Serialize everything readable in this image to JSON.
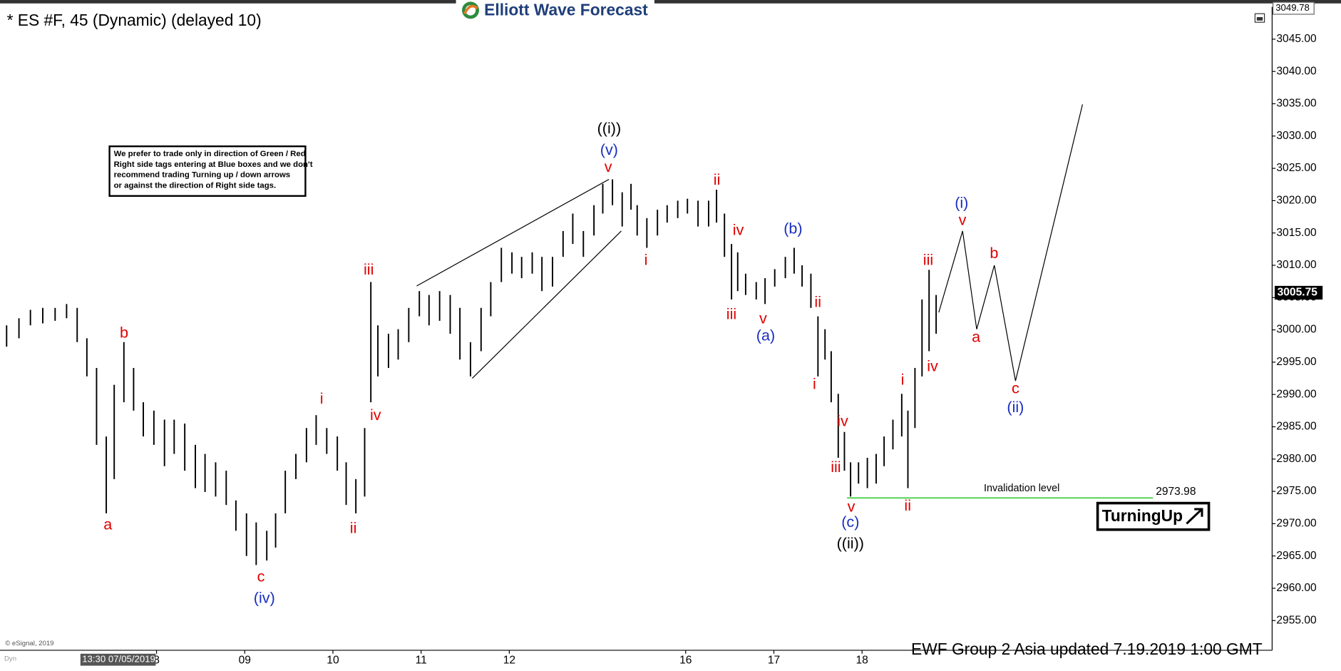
{
  "chart_data": {
    "type": "ohlc",
    "title": "* ES #F, 45 (Dynamic) (delayed 10)",
    "logo": "Elliott Wave Forecast",
    "bar_color": "#000000",
    "xlim": [
      -1.775,
      12.65
    ],
    "ylim": [
      2950.4,
      3050.0
    ],
    "xticks": [
      {
        "value": 0,
        "label": "8"
      },
      {
        "value": 1,
        "label": "09"
      },
      {
        "value": 2,
        "label": "10"
      },
      {
        "value": 3,
        "label": "11"
      },
      {
        "value": 4,
        "label": "12"
      },
      {
        "value": 6,
        "label": "16"
      },
      {
        "value": 7,
        "label": "17"
      },
      {
        "value": 8,
        "label": "18"
      }
    ],
    "yticks": [
      {
        "value": 3045,
        "label": "3045.00"
      },
      {
        "value": 3040,
        "label": "3040.00"
      },
      {
        "value": 3035,
        "label": "3035.00"
      },
      {
        "value": 3030,
        "label": "3030.00"
      },
      {
        "value": 3025,
        "label": "3025.00"
      },
      {
        "value": 3020,
        "label": "3020.00"
      },
      {
        "value": 3015,
        "label": "3015.00"
      },
      {
        "value": 3010,
        "label": "3010.00"
      },
      {
        "value": 3005,
        "label": "3005.00"
      },
      {
        "value": 3000,
        "label": "3000.00"
      },
      {
        "value": 2995,
        "label": "2995.00"
      },
      {
        "value": 2990,
        "label": "2990.00"
      },
      {
        "value": 2985,
        "label": "2985.00"
      },
      {
        "value": 2980,
        "label": "2980.00"
      },
      {
        "value": 2975,
        "label": "2975.00"
      },
      {
        "value": 2970,
        "label": "2970.00"
      },
      {
        "value": 2965,
        "label": "2965.00"
      },
      {
        "value": 2960,
        "label": "2960.00"
      },
      {
        "value": 2955,
        "label": "2955.00"
      }
    ],
    "top_price": 3049.78,
    "last_price": 3005.75,
    "x": [
      -1.7,
      -1.56,
      -1.43,
      -1.29,
      -1.15,
      -1.02,
      -0.9,
      -0.79,
      -0.68,
      -0.57,
      -0.48,
      -0.37,
      -0.26,
      -0.15,
      -0.03,
      0.09,
      0.2,
      0.32,
      0.44,
      0.55,
      0.67,
      0.79,
      0.9,
      1.02,
      1.13,
      1.25,
      1.35,
      1.46,
      1.58,
      1.7,
      1.81,
      1.93,
      2.05,
      2.15,
      2.26,
      2.36,
      2.43,
      2.51,
      2.63,
      2.74,
      2.86,
      2.98,
      3.09,
      3.21,
      3.33,
      3.44,
      3.56,
      3.68,
      3.79,
      3.91,
      4.03,
      4.14,
      4.26,
      4.37,
      4.49,
      4.61,
      4.72,
      4.84,
      4.96,
      5.06,
      5.17,
      5.28,
      5.38,
      5.45,
      5.56,
      5.68,
      5.79,
      5.91,
      6.02,
      6.14,
      6.26,
      6.35,
      6.44,
      6.52,
      6.59,
      6.68,
      6.8,
      6.9,
      7.01,
      7.13,
      7.23,
      7.32,
      7.42,
      7.5,
      7.58,
      7.65,
      7.73,
      7.8,
      7.87,
      7.96,
      8.06,
      8.16,
      8.25,
      8.35,
      8.45,
      8.52,
      8.6,
      8.68,
      8.76,
      8.84
    ],
    "high": [
      3000.7,
      3001.8,
      3003.1,
      3003.4,
      3003.4,
      3004.0,
      3003.4,
      2998.7,
      2994.1,
      2983.5,
      2991.5,
      2998.1,
      2994.1,
      2988.8,
      2987.5,
      2986.1,
      2986.1,
      2985.5,
      2982.2,
      2980.8,
      2979.5,
      2978.2,
      2973.6,
      2971.6,
      2970.2,
      2968.9,
      2971.6,
      2978.2,
      2980.8,
      2984.8,
      2986.8,
      2984.8,
      2983.5,
      2979.5,
      2976.9,
      2984.8,
      3007.4,
      3000.7,
      2999.4,
      3000.1,
      3003.4,
      3006.0,
      3005.4,
      3006.0,
      3005.4,
      3003.4,
      2998.1,
      3003.4,
      3007.4,
      3012.7,
      3012.0,
      3011.3,
      3012.0,
      3011.3,
      3011.3,
      3015.3,
      3018.0,
      3015.3,
      3019.3,
      3022.6,
      3023.3,
      3021.3,
      3022.6,
      3019.3,
      3017.3,
      3018.6,
      3019.3,
      3020.0,
      3020.3,
      3020.0,
      3020.0,
      3021.7,
      3018.0,
      3013.3,
      3012.0,
      3008.7,
      3007.4,
      3008.0,
      3009.4,
      3011.3,
      3012.7,
      3010.0,
      3008.7,
      3002.1,
      3000.1,
      2996.7,
      2990.1,
      2984.2,
      2979.5,
      2979.5,
      2980.2,
      2980.8,
      2983.5,
      2986.1,
      2990.1,
      2987.5,
      2994.1,
      3004.7,
      3009.3,
      3005.4
    ],
    "low": [
      2997.4,
      2998.7,
      3000.7,
      3001.0,
      3001.4,
      3001.8,
      2998.1,
      2992.8,
      2982.2,
      2971.6,
      2976.9,
      2988.8,
      2987.5,
      2983.5,
      2982.2,
      2978.9,
      2980.8,
      2978.2,
      2975.5,
      2974.9,
      2974.2,
      2972.9,
      2968.9,
      2965.0,
      2963.6,
      2964.3,
      2966.3,
      2971.6,
      2976.9,
      2979.5,
      2982.2,
      2980.8,
      2978.2,
      2972.9,
      2971.6,
      2974.2,
      2988.8,
      2992.8,
      2994.1,
      2995.4,
      2998.1,
      3002.1,
      3000.7,
      3001.4,
      2999.4,
      2995.4,
      2992.8,
      2996.7,
      3002.1,
      3007.4,
      3008.7,
      3008.0,
      3008.7,
      3006.0,
      3006.7,
      3011.3,
      3013.3,
      3011.3,
      3014.6,
      3018.0,
      3019.3,
      3016.0,
      3018.6,
      3014.6,
      3012.7,
      3014.6,
      3016.6,
      3017.3,
      3018.0,
      3016.0,
      3016.0,
      3016.6,
      3011.3,
      3004.7,
      3006.0,
      3005.4,
      3004.7,
      3004.0,
      3006.7,
      3008.0,
      3008.7,
      3006.7,
      3003.4,
      2992.8,
      2995.4,
      2988.8,
      2980.2,
      2978.2,
      2974.2,
      2976.2,
      2975.5,
      2976.2,
      2978.9,
      2981.5,
      2983.5,
      2975.5,
      2984.8,
      2992.8,
      2996.7,
      2999.4
    ],
    "wedge": [
      {
        "x": [
          2.95,
          5.13
        ],
        "y": [
          3006.8,
          3023.3
        ]
      },
      {
        "x": [
          3.58,
          5.27
        ],
        "y": [
          2992.5,
          3015.3
        ]
      }
    ],
    "projection": {
      "x": [
        8.87,
        9.14,
        9.3,
        9.5,
        9.74,
        10.5
      ],
      "y": [
        3002.7,
        3015.3,
        3000.1,
        3010.0,
        2992.1,
        3034.9
      ]
    },
    "invalidation": {
      "label": "Invalidation level",
      "value": 2973.98,
      "x": [
        7.83,
        11.3
      ],
      "color": "#33cc33"
    },
    "wave_labels": [
      {
        "text": "a",
        "color": "#e00000"
      },
      {
        "text": "b",
        "color": "#e00000"
      },
      {
        "text": "c",
        "color": "#e00000"
      },
      {
        "text": "(iv)",
        "color": "#1a2fbf"
      },
      {
        "text": "i",
        "color": "#e00000"
      },
      {
        "text": "ii",
        "color": "#e00000"
      },
      {
        "text": "iii",
        "color": "#e00000"
      },
      {
        "text": "iv",
        "color": "#e00000"
      },
      {
        "text": "((i))",
        "color": "#000000"
      },
      {
        "text": "(v)",
        "color": "#1a2fbf"
      },
      {
        "text": "v",
        "color": "#e00000"
      },
      {
        "text": "i",
        "color": "#e00000"
      },
      {
        "text": "ii",
        "color": "#e00000"
      },
      {
        "text": "iv",
        "color": "#e00000"
      },
      {
        "text": "iii",
        "color": "#e00000"
      },
      {
        "text": "v",
        "color": "#e00000"
      },
      {
        "text": "(a)",
        "color": "#1a2fbf"
      },
      {
        "text": "(b)",
        "color": "#1a2fbf"
      },
      {
        "text": "ii",
        "color": "#e00000"
      },
      {
        "text": "i",
        "color": "#e00000"
      },
      {
        "text": "iv",
        "color": "#e00000"
      },
      {
        "text": "iii",
        "color": "#e00000"
      },
      {
        "text": "v",
        "color": "#e00000"
      },
      {
        "text": "(c)",
        "color": "#1a2fbf"
      },
      {
        "text": "((ii))",
        "color": "#000000"
      },
      {
        "text": "i",
        "color": "#e00000"
      },
      {
        "text": "ii",
        "color": "#e00000"
      },
      {
        "text": "iii",
        "color": "#e00000"
      },
      {
        "text": "iv",
        "color": "#e00000"
      },
      {
        "text": "(i)",
        "color": "#1a2fbf"
      },
      {
        "text": "v",
        "color": "#e00000"
      },
      {
        "text": "a",
        "color": "#e00000"
      },
      {
        "text": "b",
        "color": "#e00000"
      },
      {
        "text": "c",
        "color": "#e00000"
      },
      {
        "text": "(ii)",
        "color": "#1a2fbf"
      }
    ],
    "note": [
      "We prefer to trade only in direction of Green / Red",
      "Right side tags entering at Blue boxes and we don't",
      "recommend trading Turning up / down arrows",
      "or against the direction of Right side tags."
    ],
    "badge": "TurningUp",
    "footer": "EWF Group  2 Asia  updated 7.19.2019 1:00 GMT",
    "copyright": "© eSignal, 2019",
    "cursor_time": "13:30 07/05/2019",
    "dyn": "Dyn"
  }
}
